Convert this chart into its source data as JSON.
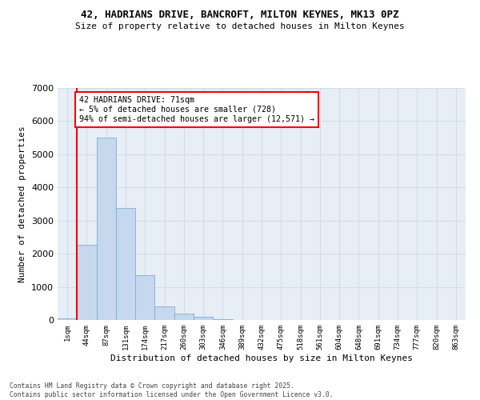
{
  "title_line1": "42, HADRIANS DRIVE, BANCROFT, MILTON KEYNES, MK13 0PZ",
  "title_line2": "Size of property relative to detached houses in Milton Keynes",
  "xlabel": "Distribution of detached houses by size in Milton Keynes",
  "ylabel": "Number of detached properties",
  "bar_color": "#c5d8ed",
  "bar_edge_color": "#7aaed6",
  "grid_color": "#d0dcea",
  "bg_color": "#e8eef6",
  "categories": [
    "1sqm",
    "44sqm",
    "87sqm",
    "131sqm",
    "174sqm",
    "217sqm",
    "260sqm",
    "303sqm",
    "346sqm",
    "389sqm",
    "432sqm",
    "475sqm",
    "518sqm",
    "561sqm",
    "604sqm",
    "648sqm",
    "691sqm",
    "734sqm",
    "777sqm",
    "820sqm",
    "863sqm"
  ],
  "bar_heights": [
    50,
    2280,
    5500,
    3380,
    1340,
    420,
    185,
    90,
    22,
    5,
    2,
    1,
    0,
    0,
    0,
    0,
    0,
    0,
    0,
    0,
    0
  ],
  "red_line_x": 0.5,
  "ylim_max": 7000,
  "yticks": [
    0,
    1000,
    2000,
    3000,
    4000,
    5000,
    6000,
    7000
  ],
  "annotation_title": "42 HADRIANS DRIVE: 71sqm",
  "annotation_line2": "← 5% of detached houses are smaller (728)",
  "annotation_line3": "94% of semi-detached houses are larger (12,571) →",
  "footer_line1": "Contains HM Land Registry data © Crown copyright and database right 2025.",
  "footer_line2": "Contains public sector information licensed under the Open Government Licence v3.0."
}
